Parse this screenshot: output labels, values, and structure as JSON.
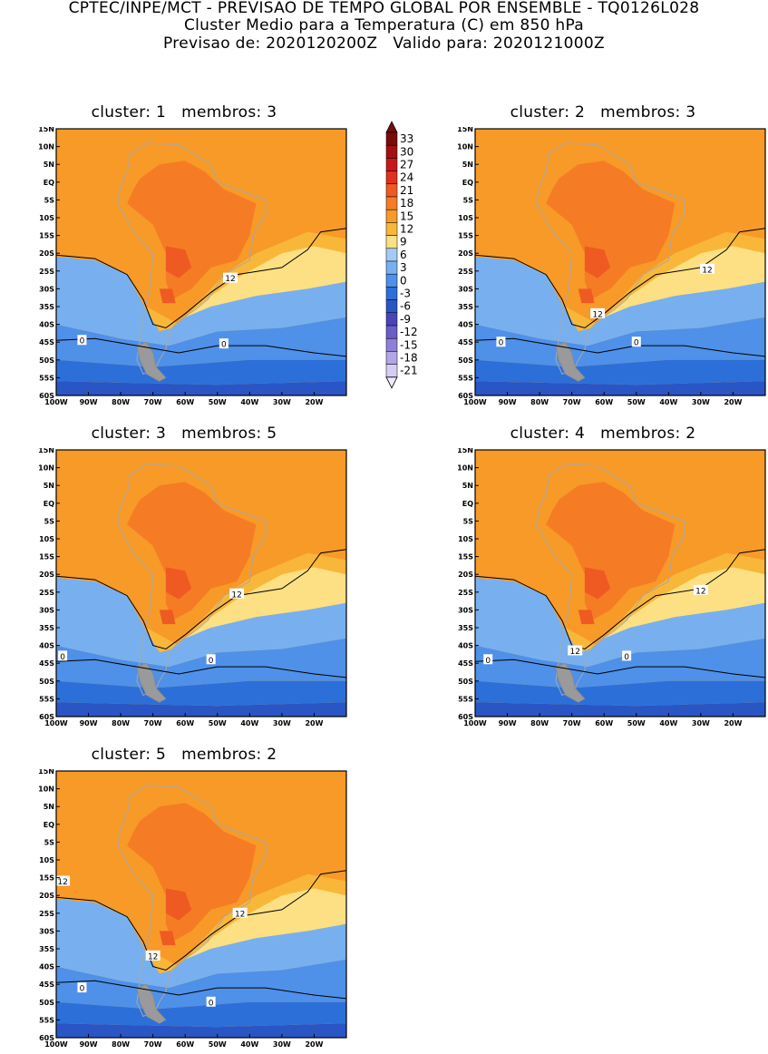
{
  "header": {
    "line1": "CPTEC/INPE/MCT - PREVISAO DE TEMPO GLOBAL POR ENSEMBLE - TQ0126L028",
    "line2": "Cluster Medio para a Temperatura (C) em 850 hPa",
    "line3": "Previsao de: 2020120200Z   Valido para: 2020121000Z"
  },
  "map": {
    "lat_labels": [
      "15N",
      "10N",
      "5N",
      "EQ",
      "5S",
      "10S",
      "15S",
      "20S",
      "25S",
      "30S",
      "35S",
      "40S",
      "45S",
      "50S",
      "55S",
      "60S"
    ],
    "lon_labels": [
      "100W",
      "90W",
      "80W",
      "70W",
      "60W",
      "50W",
      "40W",
      "30W",
      "20W"
    ],
    "lon_range": [
      -100,
      -10
    ],
    "lat_range": [
      -60,
      15
    ]
  },
  "panels": [
    {
      "title": "cluster: 1   membros: 3",
      "contour_labels": [
        "12",
        "0",
        "0"
      ]
    },
    {
      "title": "cluster: 2   membros: 3",
      "contour_labels": [
        "12",
        "12",
        "0",
        "0"
      ]
    },
    {
      "title": "cluster: 3   membros: 5",
      "contour_labels": [
        "12",
        "0",
        "0"
      ]
    },
    {
      "title": "cluster: 4   membros: 2",
      "contour_labels": [
        "12",
        "12",
        "0",
        "0"
      ]
    },
    {
      "title": "cluster: 5   membros: 2",
      "contour_labels": [
        "12",
        "12",
        "12",
        "0",
        "0"
      ]
    }
  ],
  "colorbar": {
    "labels": [
      "33",
      "30",
      "27",
      "24",
      "21",
      "18",
      "15",
      "12",
      "9",
      "6",
      "3",
      "0",
      "-3",
      "-6",
      "-9",
      "-12",
      "-15",
      "-18",
      "-21"
    ],
    "colors": [
      "#7a0b0b",
      "#a30f12",
      "#c7181c",
      "#e0301e",
      "#ef5a23",
      "#f57c24",
      "#f79a28",
      "#f9b73a",
      "#fde083",
      "#a3cbf5",
      "#78b0ef",
      "#4f90e8",
      "#2c6fd9",
      "#2a55c4",
      "#4a44b8",
      "#6a5dc8",
      "#8f7fd8",
      "#b3a6e6",
      "#d6cdf2"
    ]
  },
  "colors": {
    "warm_orange": "#f9b73a",
    "hot": "#ef5a23",
    "cool_blue": "#4f90e8",
    "cold_blue": "#2a55c4"
  }
}
